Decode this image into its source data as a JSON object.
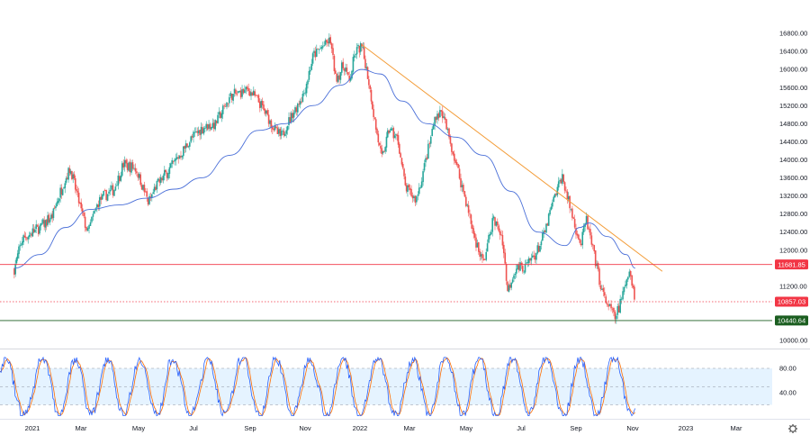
{
  "chart_data": [
    {
      "type": "candlestick",
      "title": "",
      "ylim": [
        10000,
        16800
      ],
      "y_ticks": [
        "16800.00",
        "16400.00",
        "16000.00",
        "15600.00",
        "15200.00",
        "14800.00",
        "14400.00",
        "14000.00",
        "13600.00",
        "13200.00",
        "12800.00",
        "12400.00",
        "12000.00",
        "11200.00",
        "10000.00"
      ],
      "x_ticks": [
        "2021",
        "Mar",
        "May",
        "Jul",
        "Sep",
        "Nov",
        "2022",
        "Mar",
        "May",
        "Jul",
        "Sep",
        "Nov",
        "2023",
        "Mar"
      ],
      "x_tick_dates": [
        "2021-01-01",
        "2021-03-01",
        "2021-05-01",
        "2021-07-01",
        "2021-09-01",
        "2021-11-01",
        "2022-01-01",
        "2022-03-01",
        "2022-05-01",
        "2022-07-01",
        "2022-09-01",
        "2022-11-01",
        "2023-01-01",
        "2023-03-01"
      ],
      "x_range": [
        "2020-12-10",
        "2023-04-15"
      ],
      "close_path": [
        [
          "2020-12-10",
          11600
        ],
        [
          "2020-12-20",
          12250
        ],
        [
          "2021-01-10",
          12500
        ],
        [
          "2021-01-25",
          12750
        ],
        [
          "2021-02-08",
          13500
        ],
        [
          "2021-02-16",
          13800
        ],
        [
          "2021-03-05",
          12600
        ],
        [
          "2021-03-08",
          12400
        ],
        [
          "2021-03-20",
          13100
        ],
        [
          "2021-04-05",
          13350
        ],
        [
          "2021-04-15",
          13900
        ],
        [
          "2021-04-28",
          13800
        ],
        [
          "2021-05-12",
          13050
        ],
        [
          "2021-05-20",
          13400
        ],
        [
          "2021-06-10",
          13950
        ],
        [
          "2021-06-28",
          14450
        ],
        [
          "2021-07-10",
          14700
        ],
        [
          "2021-07-25",
          14800
        ],
        [
          "2021-08-10",
          15400
        ],
        [
          "2021-08-30",
          15550
        ],
        [
          "2021-09-10",
          15300
        ],
        [
          "2021-09-30",
          14600
        ],
        [
          "2021-10-05",
          14500
        ],
        [
          "2021-10-15",
          14900
        ],
        [
          "2021-10-31",
          15500
        ],
        [
          "2021-11-10",
          16300
        ],
        [
          "2021-11-20",
          16500
        ],
        [
          "2021-11-29",
          16650
        ],
        [
          "2021-12-05",
          15800
        ],
        [
          "2021-12-15",
          16100
        ],
        [
          "2021-12-20",
          15700
        ],
        [
          "2021-12-27",
          16400
        ],
        [
          "2022-01-03",
          16500
        ],
        [
          "2022-01-10",
          15900
        ],
        [
          "2022-01-20",
          14700
        ],
        [
          "2022-01-27",
          14000
        ],
        [
          "2022-02-05",
          14700
        ],
        [
          "2022-02-15",
          14450
        ],
        [
          "2022-02-24",
          13400
        ],
        [
          "2022-03-08",
          13100
        ],
        [
          "2022-03-20",
          14100
        ],
        [
          "2022-03-29",
          15000
        ],
        [
          "2022-04-05",
          15050
        ],
        [
          "2022-04-15",
          14300
        ],
        [
          "2022-04-28",
          13300
        ],
        [
          "2022-05-10",
          12300
        ],
        [
          "2022-05-20",
          11700
        ],
        [
          "2022-05-31",
          12700
        ],
        [
          "2022-06-10",
          12300
        ],
        [
          "2022-06-16",
          11100
        ],
        [
          "2022-06-25",
          11600
        ],
        [
          "2022-07-05",
          11600
        ],
        [
          "2022-07-20",
          12000
        ],
        [
          "2022-07-28",
          12400
        ],
        [
          "2022-08-05",
          13000
        ],
        [
          "2022-08-16",
          13650
        ],
        [
          "2022-08-26",
          12900
        ],
        [
          "2022-09-06",
          12100
        ],
        [
          "2022-09-12",
          12700
        ],
        [
          "2022-09-20",
          11900
        ],
        [
          "2022-09-30",
          11000
        ],
        [
          "2022-10-13",
          10500
        ],
        [
          "2022-10-20",
          10900
        ],
        [
          "2022-10-28",
          11600
        ],
        [
          "2022-11-03",
          11000
        ],
        [
          "2022-11-04",
          10857.03
        ]
      ],
      "moving_average": [
        [
          "2020-12-10",
          11600
        ],
        [
          "2021-01-10",
          11900
        ],
        [
          "2021-02-10",
          12500
        ],
        [
          "2021-03-10",
          12900
        ],
        [
          "2021-04-10",
          13000
        ],
        [
          "2021-05-10",
          13150
        ],
        [
          "2021-06-10",
          13350
        ],
        [
          "2021-07-10",
          13600
        ],
        [
          "2021-08-10",
          14100
        ],
        [
          "2021-09-10",
          14650
        ],
        [
          "2021-10-10",
          14800
        ],
        [
          "2021-11-10",
          15200
        ],
        [
          "2021-12-10",
          15650
        ],
        [
          "2022-01-03",
          16000
        ],
        [
          "2022-01-25",
          15900
        ],
        [
          "2022-02-20",
          15300
        ],
        [
          "2022-03-20",
          14800
        ],
        [
          "2022-04-20",
          14500
        ],
        [
          "2022-05-20",
          14100
        ],
        [
          "2022-06-20",
          13300
        ],
        [
          "2022-07-20",
          12400
        ],
        [
          "2022-08-20",
          12100
        ],
        [
          "2022-09-05",
          12500
        ],
        [
          "2022-09-15",
          12600
        ],
        [
          "2022-10-05",
          12300
        ],
        [
          "2022-10-25",
          11900
        ],
        [
          "2022-11-04",
          11600
        ]
      ],
      "trendline": [
        [
          "2022-01-03",
          16550
        ],
        [
          "2022-12-05",
          11530
        ]
      ],
      "horizontal_levels": [
        {
          "value": 11681.85,
          "label": "11681.85",
          "color": "#f23645",
          "style": "solid"
        },
        {
          "value": 10857.03,
          "label": "10857.03",
          "color": "#f23645",
          "style": "dotted"
        },
        {
          "value": 10440.64,
          "label": "10440.64",
          "color": "#1b5e20",
          "style": "solid"
        }
      ],
      "colors": {
        "up": "#26a69a",
        "down": "#ef5350",
        "ma": "#4a6fd8",
        "trendline": "#f39c38",
        "support": "#1b5e20",
        "resistance": "#f23645"
      }
    },
    {
      "type": "line",
      "title": "",
      "name": "stochastic",
      "ylim": [
        0,
        100
      ],
      "y_ticks": [
        "80.00",
        "40.00"
      ],
      "levels": [
        80,
        50,
        20
      ],
      "series_colors": [
        "#2962ff",
        "#ff6d00"
      ],
      "band_color": "#dcefff"
    }
  ],
  "ui": {
    "settings_icon": "gear-icon"
  }
}
